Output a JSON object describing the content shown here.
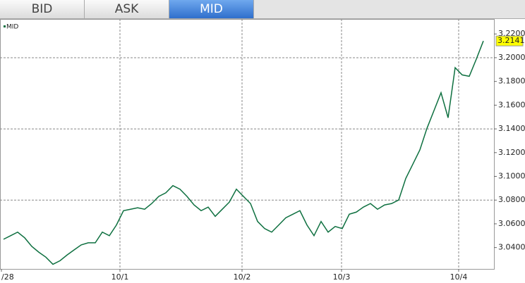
{
  "tabs": [
    "BID",
    "ASK",
    "MID"
  ],
  "active_tab": 2,
  "chart_data": {
    "type": "line",
    "series": [
      {
        "name": "MID",
        "color": "#0e7040",
        "values": [
          3.047,
          3.05,
          3.053,
          3.0482,
          3.041,
          3.0361,
          3.0319,
          3.0259,
          3.0289,
          3.0337,
          3.038,
          3.0422,
          3.044,
          3.044,
          3.053,
          3.05,
          3.059,
          3.0711,
          3.0723,
          3.0735,
          3.0723,
          3.0771,
          3.0831,
          3.0861,
          3.0922,
          3.0892,
          3.0831,
          3.0759,
          3.0711,
          3.0741,
          3.0663,
          3.0723,
          3.0783,
          3.0892,
          3.0831,
          3.0771,
          3.062,
          3.056,
          3.053,
          3.059,
          3.0651,
          3.0681,
          3.0711,
          3.059,
          3.05,
          3.062,
          3.053,
          3.0578,
          3.056,
          3.0681,
          3.0699,
          3.0741,
          3.0771,
          3.0723,
          3.0759,
          3.0771,
          3.0801,
          3.0982,
          3.1102,
          3.1223,
          3.1404,
          3.1554,
          3.1705,
          3.1494,
          3.1916,
          3.1855,
          3.1843,
          3.1988,
          3.2141
        ]
      }
    ],
    "xlim": [
      -0.3,
      69.7
    ],
    "xticks": [
      {
        "value": -0.3,
        "label": "/28"
      },
      {
        "value": 16.5,
        "label": "10/1"
      },
      {
        "value": 33.8,
        "label": "10/2"
      },
      {
        "value": 47.9,
        "label": "10/3"
      },
      {
        "value": 64.5,
        "label": "10/4"
      }
    ],
    "ylim": [
      3.022,
      3.2326
    ],
    "yticks": [
      {
        "value": 3.04,
        "label": "3.0400"
      },
      {
        "value": 3.06,
        "label": "3.0600"
      },
      {
        "value": 3.08,
        "label": "3.0800"
      },
      {
        "value": 3.1,
        "label": "3.1000"
      },
      {
        "value": 3.12,
        "label": "3.1200"
      },
      {
        "value": 3.14,
        "label": "3.1400"
      },
      {
        "value": 3.16,
        "label": "3.1600"
      },
      {
        "value": 3.18,
        "label": "3.1800"
      },
      {
        "value": 3.2,
        "label": "3.2000"
      },
      {
        "value": 3.22,
        "label": "3.2200"
      }
    ],
    "hgrid": [
      3.08,
      3.14,
      3.2
    ],
    "grid": true
  }
}
